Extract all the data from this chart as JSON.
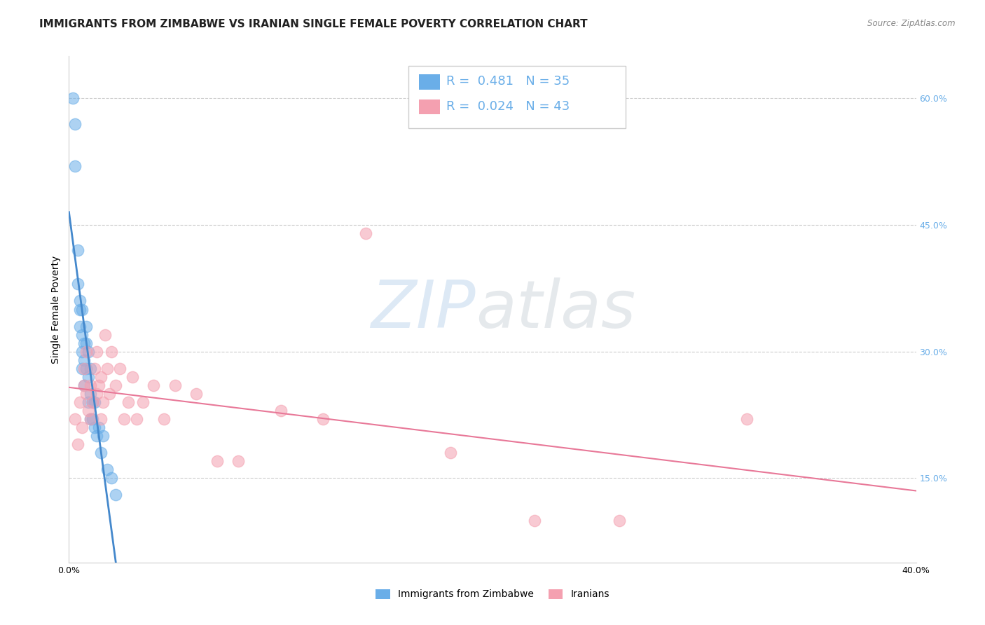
{
  "title": "IMMIGRANTS FROM ZIMBABWE VS IRANIAN SINGLE FEMALE POVERTY CORRELATION CHART",
  "source_text": "Source: ZipAtlas.com",
  "ylabel": "Single Female Poverty",
  "xlim": [
    0.0,
    0.4
  ],
  "ylim": [
    0.05,
    0.65
  ],
  "x_ticks": [
    0.0,
    0.1,
    0.2,
    0.3,
    0.4
  ],
  "x_tick_labels": [
    "0.0%",
    "",
    "",
    "",
    "40.0%"
  ],
  "y_ticks_right": [
    0.15,
    0.3,
    0.45,
    0.6
  ],
  "y_tick_labels_right": [
    "15.0%",
    "30.0%",
    "45.0%",
    "60.0%"
  ],
  "legend_r1": "R = 0.481",
  "legend_n1": "N = 35",
  "legend_r2": "R = 0.024",
  "legend_n2": "N = 43",
  "blue_color": "#6aaee8",
  "pink_color": "#f4a0b0",
  "blue_line_color": "#4488cc",
  "pink_line_color": "#e87898",
  "zimbabwe_x": [
    0.002,
    0.003,
    0.003,
    0.004,
    0.004,
    0.005,
    0.005,
    0.005,
    0.006,
    0.006,
    0.006,
    0.006,
    0.007,
    0.007,
    0.007,
    0.008,
    0.008,
    0.008,
    0.009,
    0.009,
    0.009,
    0.01,
    0.01,
    0.01,
    0.011,
    0.011,
    0.012,
    0.012,
    0.013,
    0.014,
    0.015,
    0.016,
    0.018,
    0.02,
    0.022
  ],
  "zimbabwe_y": [
    0.6,
    0.52,
    0.57,
    0.38,
    0.42,
    0.33,
    0.36,
    0.35,
    0.3,
    0.28,
    0.32,
    0.35,
    0.26,
    0.29,
    0.31,
    0.28,
    0.31,
    0.33,
    0.24,
    0.27,
    0.3,
    0.22,
    0.25,
    0.28,
    0.22,
    0.24,
    0.21,
    0.24,
    0.2,
    0.21,
    0.18,
    0.2,
    0.16,
    0.15,
    0.13
  ],
  "iranian_x": [
    0.003,
    0.004,
    0.005,
    0.006,
    0.007,
    0.007,
    0.008,
    0.008,
    0.009,
    0.01,
    0.01,
    0.011,
    0.012,
    0.013,
    0.013,
    0.014,
    0.015,
    0.015,
    0.016,
    0.017,
    0.018,
    0.019,
    0.02,
    0.022,
    0.024,
    0.026,
    0.028,
    0.03,
    0.032,
    0.035,
    0.04,
    0.045,
    0.05,
    0.06,
    0.07,
    0.08,
    0.1,
    0.12,
    0.14,
    0.18,
    0.22,
    0.26,
    0.32
  ],
  "iranian_y": [
    0.22,
    0.19,
    0.24,
    0.21,
    0.26,
    0.28,
    0.25,
    0.3,
    0.23,
    0.22,
    0.26,
    0.24,
    0.28,
    0.25,
    0.3,
    0.26,
    0.22,
    0.27,
    0.24,
    0.32,
    0.28,
    0.25,
    0.3,
    0.26,
    0.28,
    0.22,
    0.24,
    0.27,
    0.22,
    0.24,
    0.26,
    0.22,
    0.26,
    0.25,
    0.17,
    0.17,
    0.23,
    0.22,
    0.44,
    0.18,
    0.1,
    0.1,
    0.22
  ],
  "title_fontsize": 11,
  "axis_label_fontsize": 10,
  "tick_fontsize": 9,
  "legend_fontsize": 13
}
